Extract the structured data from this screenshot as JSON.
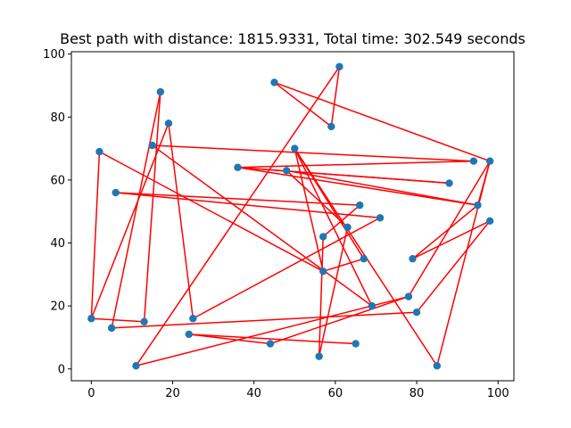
{
  "chart_data": {
    "type": "scatter",
    "title": "Best path with distance: 1815.9331, Total time: 302.549 seconds",
    "xlabel": "",
    "ylabel": "",
    "xlim": [
      -4.9,
      103.9
    ],
    "ylim": [
      -3.75,
      100.75
    ],
    "x_ticks": [
      0,
      20,
      40,
      60,
      80,
      100
    ],
    "y_ticks": [
      0,
      20,
      40,
      60,
      80,
      100
    ],
    "grid": false,
    "colors": {
      "points": "#1f77b4",
      "path": "#ff0000"
    },
    "path": [
      [
        61,
        96
      ],
      [
        59,
        77
      ],
      [
        45,
        91
      ],
      [
        98,
        66
      ],
      [
        85,
        1
      ],
      [
        50,
        70
      ],
      [
        57,
        31
      ],
      [
        67,
        35
      ],
      [
        50,
        70
      ],
      [
        69,
        20
      ],
      [
        15,
        71
      ],
      [
        94,
        66
      ],
      [
        36,
        64
      ],
      [
        88,
        59
      ],
      [
        36,
        64
      ],
      [
        95,
        52
      ],
      [
        48,
        63
      ],
      [
        63,
        45
      ],
      [
        56,
        4
      ],
      [
        57,
        42
      ],
      [
        66,
        52
      ],
      [
        6,
        56
      ],
      [
        71,
        48
      ],
      [
        25,
        16
      ],
      [
        19,
        78
      ],
      [
        0,
        16
      ],
      [
        13,
        15
      ],
      [
        17,
        88
      ],
      [
        5,
        13
      ],
      [
        80,
        18
      ],
      [
        98,
        47
      ],
      [
        79,
        35
      ],
      [
        95,
        52
      ],
      [
        98,
        66
      ],
      [
        78,
        23
      ],
      [
        11,
        1
      ],
      [
        61,
        96
      ]
    ],
    "path_extra_segments": [
      [
        [
          2,
          69
        ],
        [
          57,
          31
        ]
      ],
      [
        [
          44,
          8
        ],
        [
          78,
          23
        ]
      ],
      [
        [
          24,
          11
        ],
        [
          65,
          8
        ]
      ],
      [
        [
          44,
          8
        ],
        [
          24,
          11
        ]
      ],
      [
        [
          2,
          69
        ],
        [
          0,
          16
        ]
      ]
    ],
    "points": [
      [
        61,
        96
      ],
      [
        45,
        91
      ],
      [
        17,
        88
      ],
      [
        19,
        78
      ],
      [
        59,
        77
      ],
      [
        15,
        71
      ],
      [
        50,
        70
      ],
      [
        2,
        69
      ],
      [
        94,
        66
      ],
      [
        98,
        66
      ],
      [
        36,
        64
      ],
      [
        48,
        63
      ],
      [
        88,
        59
      ],
      [
        6,
        56
      ],
      [
        66,
        52
      ],
      [
        95,
        52
      ],
      [
        71,
        48
      ],
      [
        98,
        47
      ],
      [
        63,
        45
      ],
      [
        57,
        42
      ],
      [
        67,
        35
      ],
      [
        79,
        35
      ],
      [
        57,
        31
      ],
      [
        78,
        23
      ],
      [
        69,
        20
      ],
      [
        80,
        18
      ],
      [
        0,
        16
      ],
      [
        25,
        16
      ],
      [
        13,
        15
      ],
      [
        5,
        13
      ],
      [
        24,
        11
      ],
      [
        44,
        8
      ],
      [
        65,
        8
      ],
      [
        56,
        4
      ],
      [
        11,
        1
      ],
      [
        85,
        1
      ]
    ]
  }
}
